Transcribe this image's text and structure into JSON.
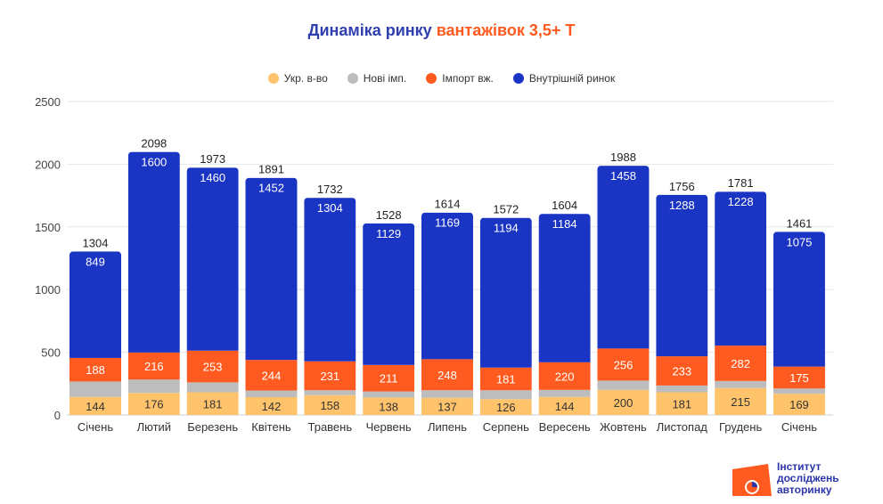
{
  "title_part1": "Динаміка ринку",
  "title_part2": "вантажівок 3,5+ Т",
  "logo_text": [
    "Інститут",
    "досліджень",
    "авторинку"
  ],
  "chart_data": {
    "type": "bar",
    "stacked": true,
    "title": "Динаміка ринку вантажівок 3,5+ Т",
    "xlabel": "",
    "ylabel": "",
    "ylim": [
      0,
      2500
    ],
    "yticks": [
      0,
      500,
      1000,
      1500,
      2000,
      2500
    ],
    "grid": true,
    "legend_position": "top-center",
    "categories": [
      "Січень",
      "Лютий",
      "Березень",
      "Квітень",
      "Травень",
      "Червень",
      "Липень",
      "Серпень",
      "Вересень",
      "Жовтень",
      "Листопад",
      "Грудень",
      "Січень"
    ],
    "series": [
      {
        "name": "Укр. в-во",
        "color": "#ffc46b",
        "labeled": true,
        "values": [
          144,
          176,
          181,
          142,
          158,
          138,
          137,
          126,
          144,
          200,
          181,
          215,
          169
        ]
      },
      {
        "name": "Нові імп.",
        "color": "#bdbdbd",
        "labeled": false,
        "values": [
          123,
          106,
          79,
          53,
          39,
          50,
          60,
          71,
          56,
          74,
          54,
          56,
          42
        ]
      },
      {
        "name": "Імпорт вж.",
        "color": "#ff5a1f",
        "labeled": true,
        "values": [
          188,
          216,
          253,
          244,
          231,
          211,
          248,
          181,
          220,
          256,
          233,
          282,
          175
        ]
      },
      {
        "name": "Внутрішній ринок",
        "color": "#1a35c4",
        "labeled": true,
        "values": [
          849,
          1600,
          1460,
          1452,
          1304,
          1129,
          1169,
          1194,
          1184,
          1458,
          1288,
          1228,
          1075
        ]
      }
    ],
    "totals": [
      1304,
      2098,
      1973,
      1891,
      1732,
      1528,
      1614,
      1572,
      1604,
      1988,
      1756,
      1781,
      1461
    ]
  }
}
